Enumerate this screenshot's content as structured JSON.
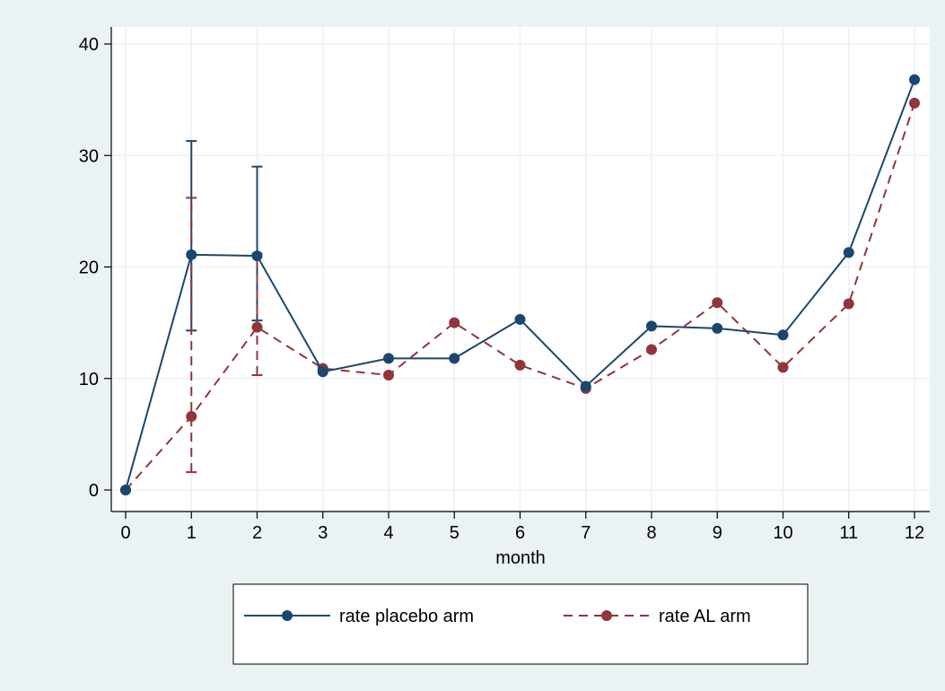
{
  "chart_data": {
    "type": "line",
    "title": "",
    "xlabel": "month",
    "ylabel": "",
    "xlim": [
      0,
      12
    ],
    "ylim": [
      0,
      40
    ],
    "x_ticks": [
      "0",
      "1",
      "2",
      "3",
      "4",
      "5",
      "6",
      "7",
      "8",
      "9",
      "10",
      "11",
      "12"
    ],
    "y_ticks": [
      "0",
      "10",
      "20",
      "30",
      "40"
    ],
    "grid": true,
    "legend_position": "bottom",
    "x": [
      0,
      1,
      2,
      3,
      4,
      5,
      6,
      7,
      8,
      9,
      10,
      11,
      12
    ],
    "series": [
      {
        "name": "rate placebo arm",
        "color": "#1a476f",
        "dash": "solid",
        "values": [
          0,
          21.1,
          21.0,
          10.6,
          11.8,
          11.8,
          15.3,
          9.3,
          14.7,
          14.5,
          13.9,
          21.3,
          36.8
        ],
        "error_bars": [
          {
            "x": 1,
            "low": 14.3,
            "high": 31.3
          },
          {
            "x": 2,
            "low": 15.2,
            "high": 29.0
          }
        ]
      },
      {
        "name": "rate AL arm",
        "color": "#90353b",
        "dash": "dashed",
        "values": [
          0,
          6.6,
          14.6,
          10.9,
          10.3,
          15.0,
          11.2,
          9.1,
          12.6,
          16.8,
          11.0,
          16.7,
          34.7
        ],
        "error_bars": [
          {
            "x": 1,
            "low": 1.6,
            "high": 26.2
          },
          {
            "x": 2,
            "low": 10.3,
            "high": 21.2
          }
        ]
      }
    ]
  }
}
